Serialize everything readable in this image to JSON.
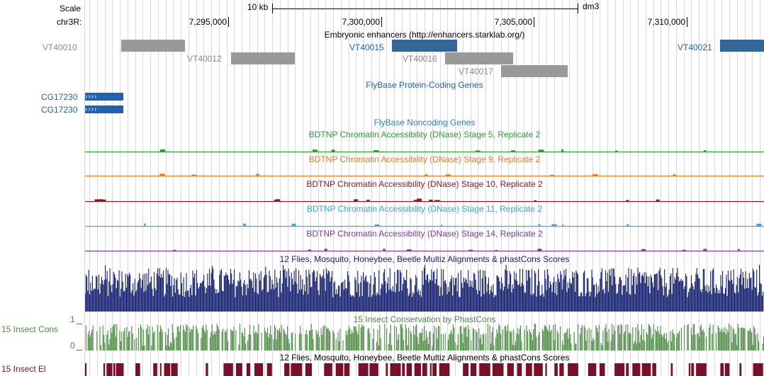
{
  "header": {
    "scale_label": "Scale",
    "scale_value": "10 kb",
    "assembly": "dm3",
    "chrom_label": "chr3R:",
    "positions": [
      "7,295,000",
      "7,300,000",
      "7,305,000",
      "7,310,000"
    ]
  },
  "tracks": {
    "enhancers": {
      "title": "Embryonic enhancers (http://enhancers.starklab.org/)",
      "features": [
        {
          "name": "VT40010",
          "color": "#999999"
        },
        {
          "name": "VT40012",
          "color": "#999999"
        },
        {
          "name": "VT40015",
          "color": "#336699"
        },
        {
          "name": "VT40016",
          "color": "#999999"
        },
        {
          "name": "VT40017",
          "color": "#999999"
        },
        {
          "name": "VT40021",
          "color": "#336699"
        }
      ]
    },
    "protein_coding": {
      "title": "FlyBase Protein-Coding Genes",
      "genes": [
        {
          "name": "CG17230",
          "strand_glyph": "›››› "
        },
        {
          "name": "CG17230",
          "strand_glyph": "›››› "
        }
      ]
    },
    "noncoding": {
      "title": "FlyBase Noncoding Genes"
    },
    "dnase": [
      {
        "title": "BDTNP Chromatin Accessibility (DNase) Stage 5, Replicate 2",
        "color": "#2ca02c"
      },
      {
        "title": "BDTNP Chromatin Accessibility (DNase) Stage 9, Replicate 2",
        "color": "#f07a1c"
      },
      {
        "title": "BDTNP Chromatin Accessibility (DNase) Stage 10, Replicate 2",
        "color": "#8b1a1a"
      },
      {
        "title": "BDTNP Chromatin Accessibility (DNase) Stage 11, Replicate 2",
        "color": "#3ea6d6"
      },
      {
        "title": "BDTNP Chromatin Accessibility (DNase) Stage 14, Replicate 2",
        "color": "#7a3aa6"
      }
    ],
    "multiz": {
      "title": "12 Flies, Mosquito, Honeybee, Beetle Multiz Alignments & phastCons Scores",
      "color": "#121e6e"
    },
    "phastcons": {
      "title": "15 Insect Conservation by PhastCons",
      "side_label": "15 Insect Cons",
      "axis_max": "1",
      "axis_min": "0",
      "color": "#4a8a3f"
    },
    "elements": {
      "title": "12 Flies, Mosquito, Honeybee, Beetle Multiz Alignments & phastCons Scores",
      "side_label": "15 Insect El",
      "color": "#7a0f2a"
    }
  }
}
